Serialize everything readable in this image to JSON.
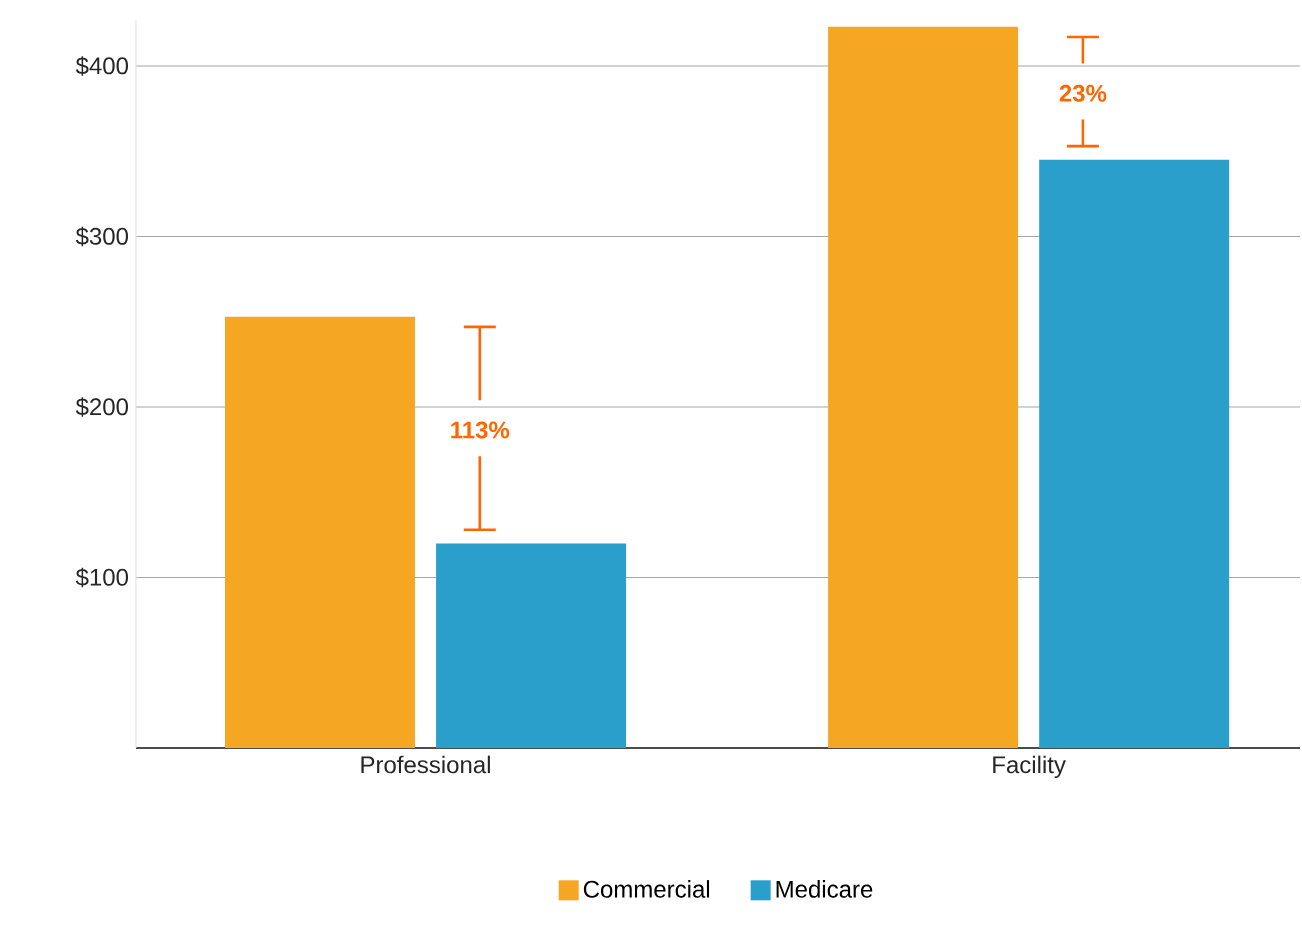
{
  "chart_data": {
    "type": "bar",
    "categories": [
      "Professional",
      "Facility"
    ],
    "series": [
      {
        "name": "Commercial",
        "color": "#f5a623",
        "values": [
          253,
          423
        ]
      },
      {
        "name": "Medicare",
        "color": "#2a9fcc",
        "values": [
          120,
          345
        ]
      }
    ],
    "ylim": [
      0,
      427
    ],
    "yticks": [
      {
        "value": 100,
        "label": "$100"
      },
      {
        "value": 200,
        "label": "$200"
      },
      {
        "value": 300,
        "label": "$300"
      },
      {
        "value": 400,
        "label": "$400"
      }
    ],
    "grid": "y",
    "legend": "bottom",
    "annotations": [
      "113%",
      "23%"
    ]
  }
}
